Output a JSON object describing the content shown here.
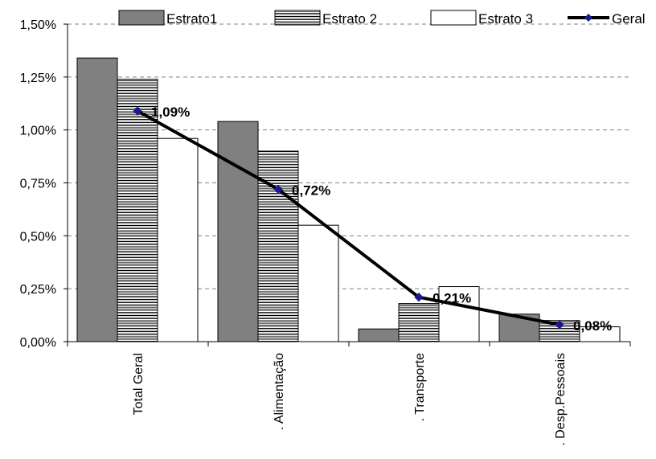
{
  "chart_data": {
    "type": "bar",
    "title": "",
    "xlabel": "",
    "ylabel": "",
    "ylim": [
      0,
      1.5
    ],
    "yticks": [
      "0,00%",
      "0,25%",
      "0,50%",
      "0,75%",
      "1,00%",
      "1,25%",
      "1,50%"
    ],
    "grid": "horizontal-dashed",
    "legend_position": "top",
    "categories": [
      "Total Geral",
      ". Alimentação",
      ". Transporte",
      ". Desp.Pessoais"
    ],
    "series": [
      {
        "name": "Estrato1",
        "type": "bar",
        "fill": "gray",
        "values": [
          1.34,
          1.04,
          0.06,
          0.13
        ]
      },
      {
        "name": "Estrato 2",
        "type": "bar",
        "fill": "horizontal-stripes",
        "values": [
          1.24,
          0.9,
          0.18,
          0.1
        ]
      },
      {
        "name": "Estrato 3",
        "type": "bar",
        "fill": "white",
        "values": [
          0.96,
          0.55,
          0.26,
          0.07
        ]
      },
      {
        "name": "Geral",
        "type": "line",
        "values": [
          1.09,
          0.72,
          0.21,
          0.08
        ],
        "data_labels": [
          "1,09%",
          "0,72%",
          "0,21%",
          "0,08%"
        ]
      }
    ],
    "colors": {
      "estrato1": "#808080",
      "estrato2_stripe": "#000000",
      "estrato3": "#ffffff",
      "line": "#000000",
      "marker": "#1a1a8c"
    }
  }
}
